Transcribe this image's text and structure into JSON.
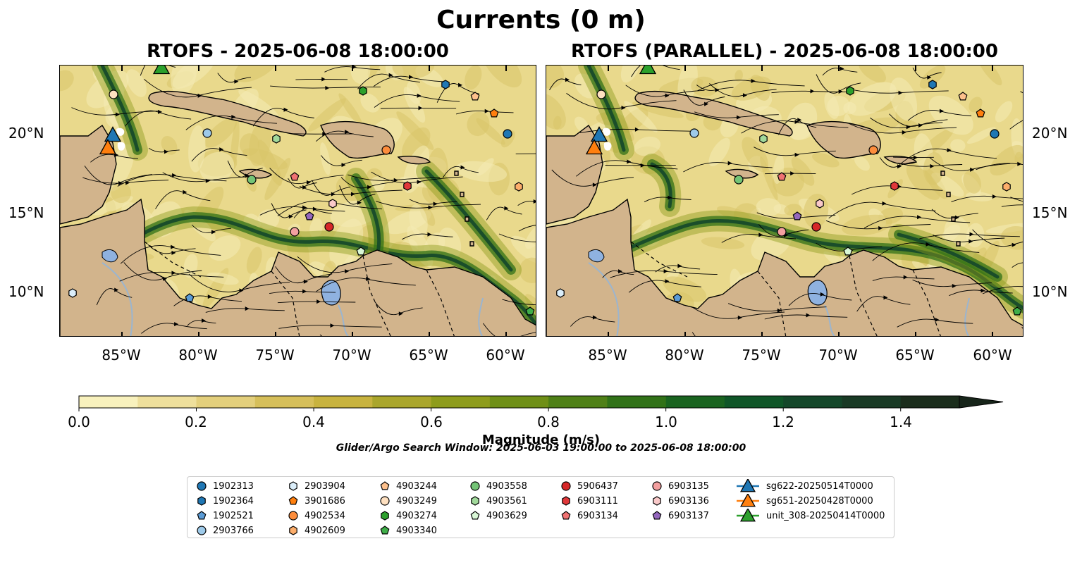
{
  "title": "Currents (0 m)",
  "panels": [
    {
      "title": "RTOFS - 2025-06-08 18:00:00"
    },
    {
      "title": "RTOFS (PARALLEL) - 2025-06-08 18:00:00"
    }
  ],
  "map_extent": {
    "lon": [
      -89,
      -58
    ],
    "lat": [
      7,
      24.3
    ]
  },
  "axes": {
    "lon_ticks": [
      "85°W",
      "80°W",
      "75°W",
      "70°W",
      "65°W",
      "60°W"
    ],
    "lat_ticks": [
      "20°N",
      "15°N",
      "10°N"
    ]
  },
  "colorbar": {
    "label": "Magnitude (m/s)",
    "ticks": [
      "0.0",
      "0.2",
      "0.4",
      "0.6",
      "0.8",
      "1.0",
      "1.2",
      "1.4"
    ],
    "range": [
      0,
      1.5
    ],
    "extend": "max",
    "colors": [
      "#f8f1bd",
      "#eedf9c",
      "#e3cf7c",
      "#d6bf5a",
      "#c8b33f",
      "#aaa62c",
      "#8e9c1c",
      "#6f8f17",
      "#4f8017",
      "#317218",
      "#1a6420",
      "#0f5628",
      "#14472a",
      "#193a25",
      "#1b2d1c",
      "#17251a"
    ]
  },
  "search_window": "Glider/Argo Search Window: 2025-06-03 19:00:00 to 2025-06-08 18:00:00",
  "legend": [
    {
      "label": "1902313",
      "color": "#1f77b4",
      "marker": "circle"
    },
    {
      "label": "1902364",
      "color": "#1f77b4",
      "marker": "hexagon"
    },
    {
      "label": "1902521",
      "color": "#5b9bd5",
      "marker": "pentagon"
    },
    {
      "label": "2903766",
      "color": "#9ecae9",
      "marker": "circle"
    },
    {
      "label": "2903904",
      "color": "#dbeefa",
      "marker": "hexagon"
    },
    {
      "label": "3901686",
      "color": "#ff7f0e",
      "marker": "pentagon"
    },
    {
      "label": "4902534",
      "color": "#fd8d3c",
      "marker": "circle"
    },
    {
      "label": "4902609",
      "color": "#fdae6b",
      "marker": "hexagon"
    },
    {
      "label": "4903244",
      "color": "#fdc08c",
      "marker": "pentagon"
    },
    {
      "label": "4903249",
      "color": "#fee0c0",
      "marker": "circle"
    },
    {
      "label": "4903274",
      "color": "#2ca02c",
      "marker": "hexagon"
    },
    {
      "label": "4903340",
      "color": "#3fae49",
      "marker": "pentagon"
    },
    {
      "label": "4903558",
      "color": "#74c476",
      "marker": "circle"
    },
    {
      "label": "4903561",
      "color": "#a1d99b",
      "marker": "hexagon"
    },
    {
      "label": "4903629",
      "color": "#d9f7d6",
      "marker": "pentagon"
    },
    {
      "label": "5906437",
      "color": "#d62728",
      "marker": "circle"
    },
    {
      "label": "6903111",
      "color": "#e0383a",
      "marker": "hexagon"
    },
    {
      "label": "6903134",
      "color": "#f07272",
      "marker": "pentagon"
    },
    {
      "label": "6903135",
      "color": "#f4a0a0",
      "marker": "circle"
    },
    {
      "label": "6903136",
      "color": "#f9c9c9",
      "marker": "hexagon"
    },
    {
      "label": "6903137",
      "color": "#9467bd",
      "marker": "pentagon"
    },
    {
      "label": "sg622-20250514T0000",
      "color": "#1f77b4",
      "marker": "triangle"
    },
    {
      "label": "sg651-20250428T0000",
      "color": "#ff7f0e",
      "marker": "triangle"
    },
    {
      "label": "unit_308-20250414T0000",
      "color": "#2ca02c",
      "marker": "triangle"
    }
  ],
  "floats": [
    {
      "label": "1902313",
      "lon": [
        -60.1,
        -60.0
      ]
    },
    {
      "label": "2903766",
      "lon": [
        -79.4,
        -79.6
      ]
    }
  ]
}
